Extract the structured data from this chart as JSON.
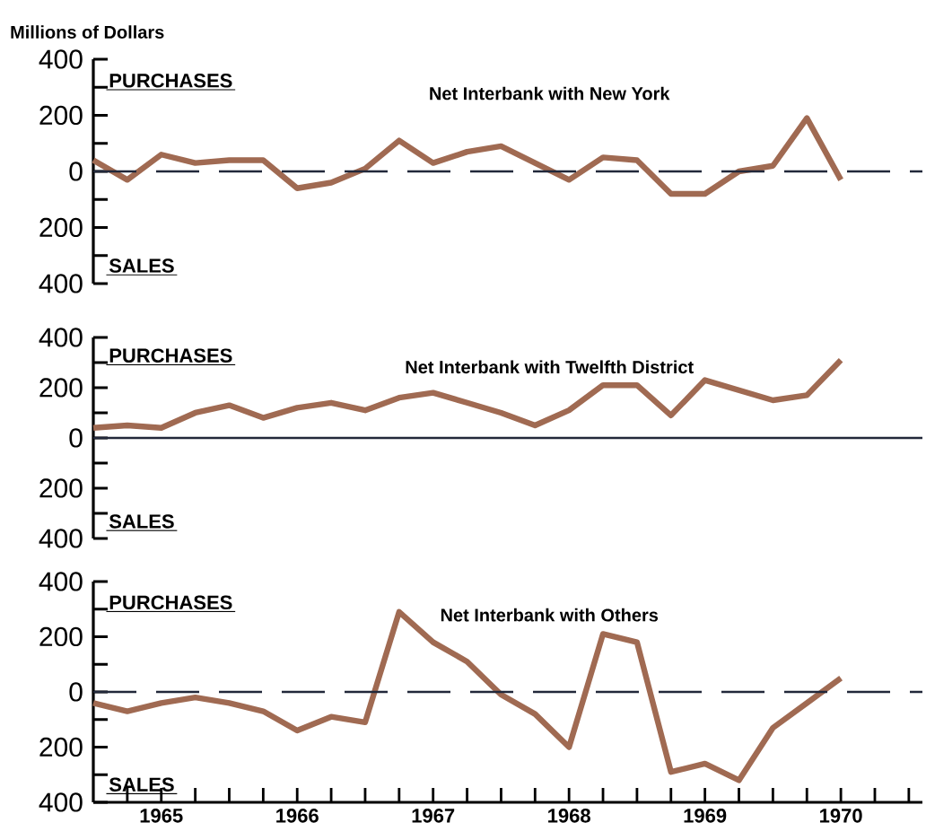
{
  "chart_data": [
    {
      "type": "line",
      "title": "Net Interbank with New York",
      "ylabel": "Millions of Dollars",
      "annotations": [
        "PURCHASES",
        "SALES"
      ],
      "x": [
        1965,
        1965.25,
        1965.5,
        1965.75,
        1966,
        1966.25,
        1966.5,
        1966.75,
        1967,
        1967.25,
        1967.5,
        1967.75,
        1968,
        1968.25,
        1968.5,
        1968.75,
        1969,
        1969.25,
        1969.5,
        1969.75,
        1970,
        1970.25,
        1970.5
      ],
      "series": [
        {
          "color": "#a06a52",
          "values": [
            40,
            -30,
            60,
            30,
            40,
            40,
            -60,
            -40,
            10,
            110,
            30,
            70,
            90,
            30,
            -30,
            50,
            40,
            -80,
            -80,
            0,
            20,
            190,
            -30
          ]
        }
      ],
      "xlim": [
        1965,
        1971.1
      ],
      "ylim": [
        -400,
        400
      ],
      "yticks": [
        {
          "value": -400,
          "label": "400"
        },
        {
          "value": -300,
          "label": null
        },
        {
          "value": -200,
          "label": "200"
        },
        {
          "value": -100,
          "label": null
        },
        0,
        {
          "value": 100,
          "label": null
        },
        200,
        {
          "value": 300,
          "label": null
        },
        400
      ],
      "tick_labels": "y",
      "grid": false,
      "marker": "none",
      "line_style": "solid",
      "ref_lines": [
        {
          "axis": "y",
          "value": 0,
          "color": "#22283a",
          "line_style": "dashed"
        }
      ]
    },
    {
      "type": "line",
      "title": "Net Interbank with Twelfth District",
      "annotations": [
        "PURCHASES",
        "SALES"
      ],
      "x": [
        1965,
        1965.25,
        1965.5,
        1965.75,
        1966,
        1966.25,
        1966.5,
        1966.75,
        1967,
        1967.25,
        1967.5,
        1967.75,
        1968,
        1968.25,
        1968.5,
        1968.75,
        1969,
        1969.25,
        1969.5,
        1969.75,
        1970,
        1970.25,
        1970.5
      ],
      "series": [
        {
          "color": "#a06a52",
          "values": [
            40,
            50,
            40,
            100,
            130,
            80,
            120,
            140,
            110,
            160,
            180,
            140,
            100,
            50,
            110,
            210,
            210,
            90,
            230,
            190,
            150,
            170,
            310
          ]
        }
      ],
      "xlim": [
        1965,
        1971.1
      ],
      "ylim": [
        -400,
        400
      ],
      "yticks": [
        {
          "value": -400,
          "label": "400"
        },
        {
          "value": -300,
          "label": null
        },
        {
          "value": -200,
          "label": "200"
        },
        {
          "value": -100,
          "label": null
        },
        0,
        {
          "value": 100,
          "label": null
        },
        200,
        {
          "value": 300,
          "label": null
        },
        400
      ],
      "tick_labels": "y",
      "grid": false,
      "marker": "none",
      "line_style": "solid",
      "ref_lines": [
        {
          "axis": "y",
          "value": 0,
          "color": "#22283a",
          "line_style": "solid"
        }
      ]
    },
    {
      "type": "line",
      "title": "Net Interbank with Others",
      "annotations": [
        "PURCHASES",
        "SALES"
      ],
      "x": [
        1965,
        1965.25,
        1965.5,
        1965.75,
        1966,
        1966.25,
        1966.5,
        1966.75,
        1967,
        1967.25,
        1967.5,
        1967.75,
        1968,
        1968.25,
        1968.5,
        1968.75,
        1969,
        1969.25,
        1969.5,
        1969.75,
        1970,
        1970.25,
        1970.5
      ],
      "series": [
        {
          "color": "#a06a52",
          "values": [
            -40,
            -70,
            -40,
            -20,
            -40,
            -70,
            -140,
            -90,
            -110,
            290,
            180,
            110,
            -10,
            -80,
            -200,
            210,
            180,
            -290,
            -260,
            -320,
            -130,
            -40,
            50
          ]
        }
      ],
      "xlim": [
        1965,
        1971.1
      ],
      "ylim": [
        -400,
        400
      ],
      "xticks": [
        {
          "value": 1965.25,
          "label": null
        },
        {
          "value": 1965.5,
          "label": "1965"
        },
        {
          "value": 1965.75,
          "label": null
        },
        {
          "value": 1966,
          "label": null
        },
        {
          "value": 1966.25,
          "label": null
        },
        {
          "value": 1966.5,
          "label": "1966"
        },
        {
          "value": 1966.75,
          "label": null
        },
        {
          "value": 1967,
          "label": null
        },
        {
          "value": 1967.25,
          "label": null
        },
        {
          "value": 1967.5,
          "label": "1967"
        },
        {
          "value": 1967.75,
          "label": null
        },
        {
          "value": 1968,
          "label": null
        },
        {
          "value": 1968.25,
          "label": null
        },
        {
          "value": 1968.5,
          "label": "1968"
        },
        {
          "value": 1968.75,
          "label": null
        },
        {
          "value": 1969,
          "label": null
        },
        {
          "value": 1969.25,
          "label": null
        },
        {
          "value": 1969.5,
          "label": "1969"
        },
        {
          "value": 1969.75,
          "label": null
        },
        {
          "value": 1970,
          "label": null
        },
        {
          "value": 1970.25,
          "label": null
        },
        {
          "value": 1970.5,
          "label": "1970"
        },
        {
          "value": 1970.75,
          "label": null
        },
        {
          "value": 1971,
          "label": null
        }
      ],
      "yticks": [
        {
          "value": -400,
          "label": "400"
        },
        {
          "value": -300,
          "label": null
        },
        {
          "value": -200,
          "label": "200"
        },
        {
          "value": -100,
          "label": null
        },
        0,
        {
          "value": 100,
          "label": null
        },
        200,
        {
          "value": 300,
          "label": null
        },
        400
      ],
      "grid": false,
      "marker": "none",
      "line_style": "solid",
      "ref_lines": [
        {
          "axis": "y",
          "value": 0,
          "color": "#22283a",
          "line_style": "dashed"
        }
      ]
    }
  ]
}
